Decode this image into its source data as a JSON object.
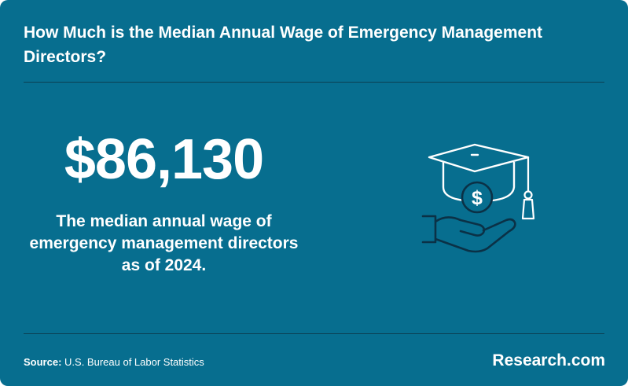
{
  "header": {
    "title": "How Much is the Median Annual Wage of Emergency Management Directors?"
  },
  "stat": {
    "value": "$86,130",
    "caption": "The median annual wage of emergency management directors as of 2024."
  },
  "illustration": {
    "icon": "graduation-cap-coin-hand-icon",
    "coin_symbol": "$"
  },
  "footer": {
    "source_label": "Source:",
    "source_text": "U.S. Bureau of Labor Statistics",
    "brand": "Research.com"
  },
  "colors": {
    "background": "#076e8f",
    "icon_white": "#ffffff",
    "icon_dark": "#0b3146",
    "divider": "#0b3f52"
  }
}
